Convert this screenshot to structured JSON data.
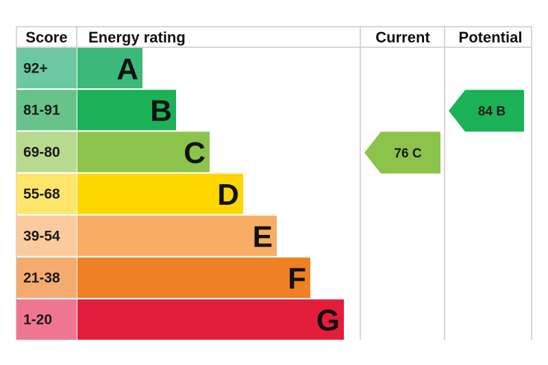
{
  "headers": {
    "score": "Score",
    "rating": "Energy rating",
    "current": "Current",
    "potential": "Potential"
  },
  "chart_data": {
    "type": "bar",
    "categories": [
      "A",
      "B",
      "C",
      "D",
      "E",
      "F",
      "G"
    ],
    "score_ranges": [
      "92+",
      "81-91",
      "69-80",
      "55-68",
      "39-54",
      "21-38",
      "1-20"
    ],
    "bar_colors": [
      "#3cb878",
      "#1bb157",
      "#8cc34a",
      "#ffd500",
      "#f9ac64",
      "#ef8023",
      "#e31d3c"
    ],
    "score_cell_colors": [
      "#6cc8a0",
      "#68c38b",
      "#b8da8e",
      "#ffe66b",
      "#fbcb9e",
      "#f5ab70",
      "#ef7691"
    ],
    "current": {
      "value": 76,
      "band": "C",
      "label": "76  C",
      "color": "#8cc34a"
    },
    "potential": {
      "value": 84,
      "band": "B",
      "label": "84  B",
      "color": "#1bb157"
    }
  }
}
